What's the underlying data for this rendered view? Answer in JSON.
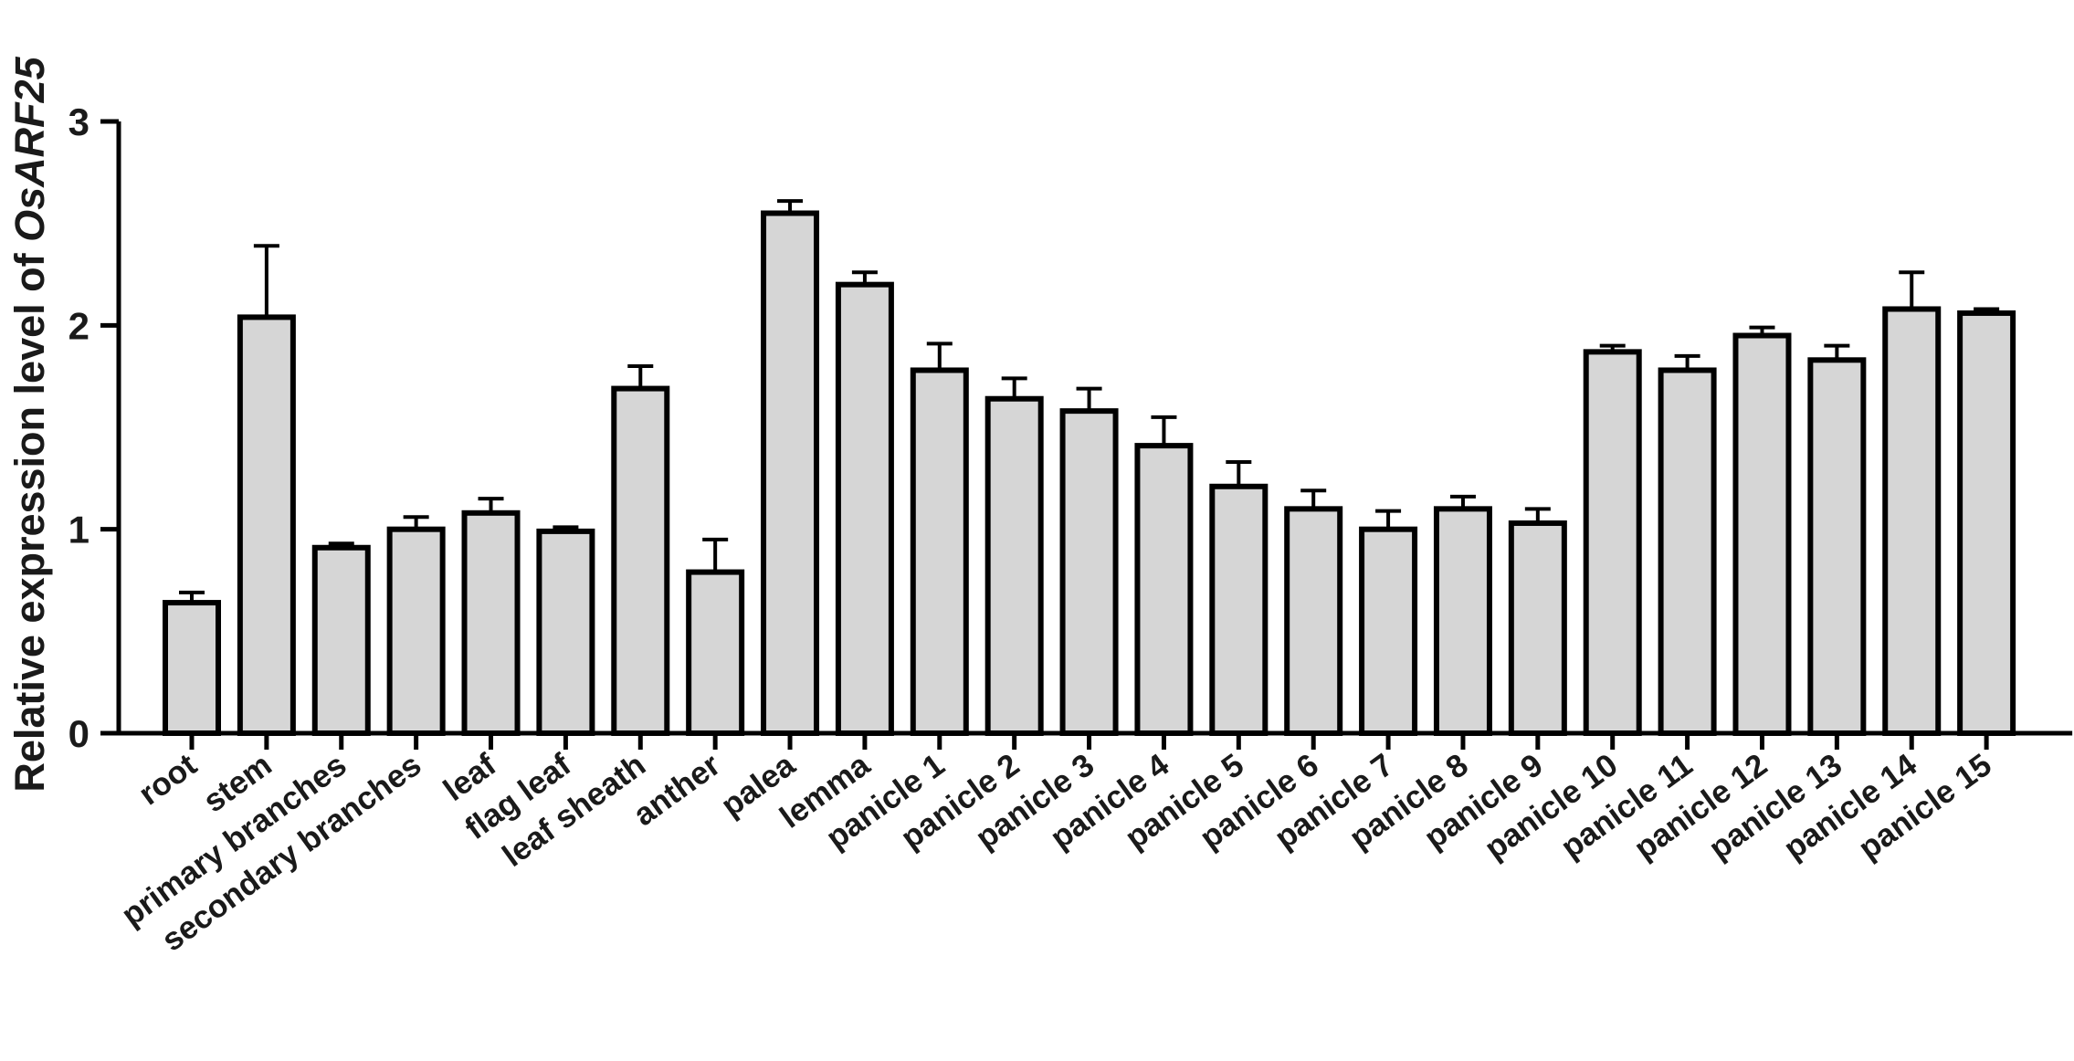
{
  "chart_data": {
    "type": "bar",
    "ylabel_prefix": "Relative expression level of ",
    "ylabel_gene": "OsARF25",
    "xlabel": "",
    "ylim": [
      0,
      3
    ],
    "yticks": [
      0,
      1,
      2,
      3
    ],
    "grid": false,
    "bar_color": "#d6d6d6",
    "categories": [
      "root",
      "stem",
      "primary branches",
      "secondary branches",
      "leaf",
      "flag leaf",
      "leaf sheath",
      "anther",
      "palea",
      "lemma",
      "panicle 1",
      "panicle 2",
      "panicle 3",
      "panicle 4",
      "panicle 5",
      "panicle 6",
      "panicle 7",
      "panicle 8",
      "panicle 9",
      "panicle 10",
      "panicle 11",
      "panicle 12",
      "panicle 13",
      "panicle 14",
      "panicle 15"
    ],
    "values": [
      0.64,
      2.04,
      0.91,
      1.0,
      1.08,
      0.99,
      1.69,
      0.79,
      2.55,
      2.2,
      1.78,
      1.64,
      1.58,
      1.41,
      1.21,
      1.1,
      1.0,
      1.1,
      1.03,
      1.87,
      1.78,
      1.95,
      1.83,
      2.08,
      2.06
    ],
    "errors": [
      0.05,
      0.35,
      0.02,
      0.06,
      0.07,
      0.02,
      0.11,
      0.16,
      0.06,
      0.06,
      0.13,
      0.1,
      0.11,
      0.14,
      0.12,
      0.09,
      0.09,
      0.06,
      0.07,
      0.03,
      0.07,
      0.04,
      0.07,
      0.18,
      0.02
    ]
  }
}
